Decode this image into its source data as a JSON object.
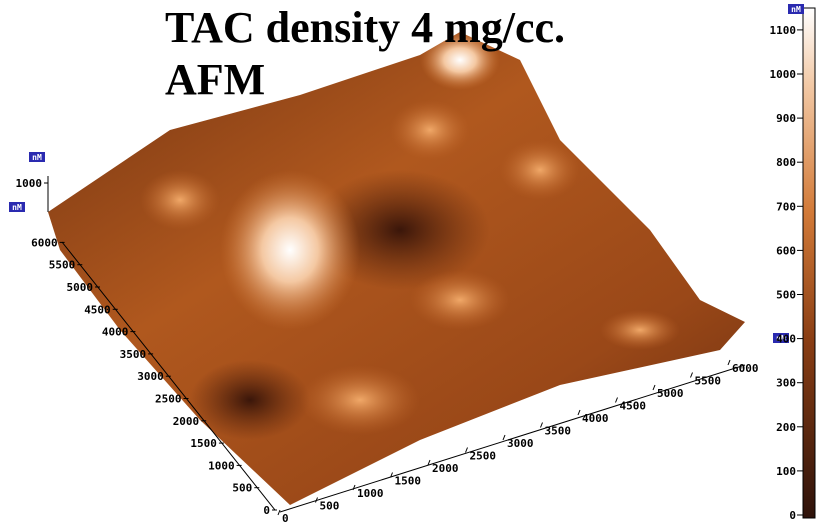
{
  "title": {
    "lines": [
      "TAC density 4 mg/cc.",
      "AFM"
    ]
  },
  "z_axis": {
    "unit": "nM",
    "ticks": [
      1000
    ]
  },
  "y_axis": {
    "unit": "nM",
    "ticks": [
      0,
      500,
      1000,
      1500,
      2000,
      2500,
      3000,
      3500,
      4000,
      4500,
      5000,
      5500,
      6000
    ]
  },
  "x_axis": {
    "unit": "nM",
    "ticks": [
      0,
      500,
      1000,
      1500,
      2000,
      2500,
      3000,
      3500,
      4000,
      4500,
      5000,
      5500,
      6000
    ]
  },
  "color_scale": {
    "unit": "nM",
    "ticks": [
      0,
      100,
      200,
      300,
      400,
      500,
      600,
      700,
      800,
      900,
      1000,
      1100
    ]
  }
}
